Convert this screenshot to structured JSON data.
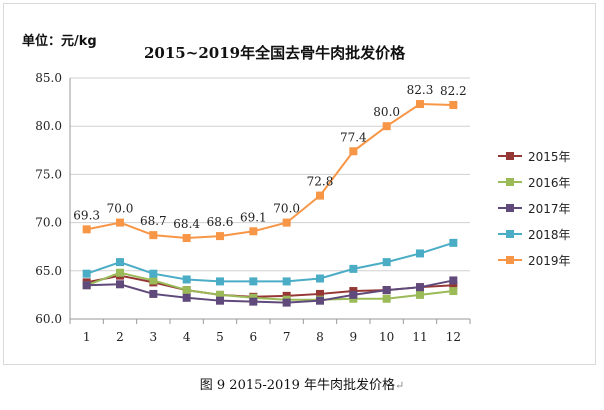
{
  "chart_data": {
    "type": "line",
    "unit_label": "单位：元/kg",
    "title": "2015~2019年全国去骨牛肉批发价格",
    "x": [
      1,
      2,
      3,
      4,
      5,
      6,
      7,
      8,
      9,
      10,
      11,
      12
    ],
    "ylim": [
      60,
      85
    ],
    "yticks": [
      "60.0",
      "65.0",
      "70.0",
      "75.0",
      "80.0",
      "85.0"
    ],
    "grid": true,
    "legend_position": "right",
    "series": [
      {
        "name": "2015年",
        "color": "#953735",
        "values": [
          63.8,
          64.5,
          63.8,
          63.0,
          62.5,
          62.3,
          62.4,
          62.6,
          62.9,
          63.0,
          63.3,
          63.5
        ]
      },
      {
        "name": "2016年",
        "color": "#9bbb59",
        "values": [
          63.5,
          64.8,
          64.0,
          63.0,
          62.5,
          62.2,
          62.0,
          62.0,
          62.1,
          62.1,
          62.5,
          62.9
        ]
      },
      {
        "name": "2017年",
        "color": "#604a7b",
        "values": [
          63.5,
          63.6,
          62.6,
          62.2,
          61.9,
          61.8,
          61.7,
          61.9,
          62.5,
          63.0,
          63.3,
          64.0
        ]
      },
      {
        "name": "2018年",
        "color": "#4bacc6",
        "values": [
          64.7,
          65.9,
          64.7,
          64.1,
          63.9,
          63.9,
          63.9,
          64.2,
          65.2,
          65.9,
          66.8,
          67.9
        ]
      },
      {
        "name": "2019年",
        "color": "#f79646",
        "values": [
          69.3,
          70.0,
          68.7,
          68.4,
          68.6,
          69.1,
          70.0,
          72.8,
          77.4,
          80.0,
          82.3,
          82.2
        ],
        "data_labels": [
          "69.3",
          "70.0",
          "68.7",
          "68.4",
          "68.6",
          "69.1",
          "70.0",
          "72.8",
          "77.4",
          "80.0",
          "82.3",
          "82.2"
        ]
      }
    ]
  },
  "caption": "图 9  2015-2019 年牛肉批发价格",
  "caption_mark": "↵"
}
